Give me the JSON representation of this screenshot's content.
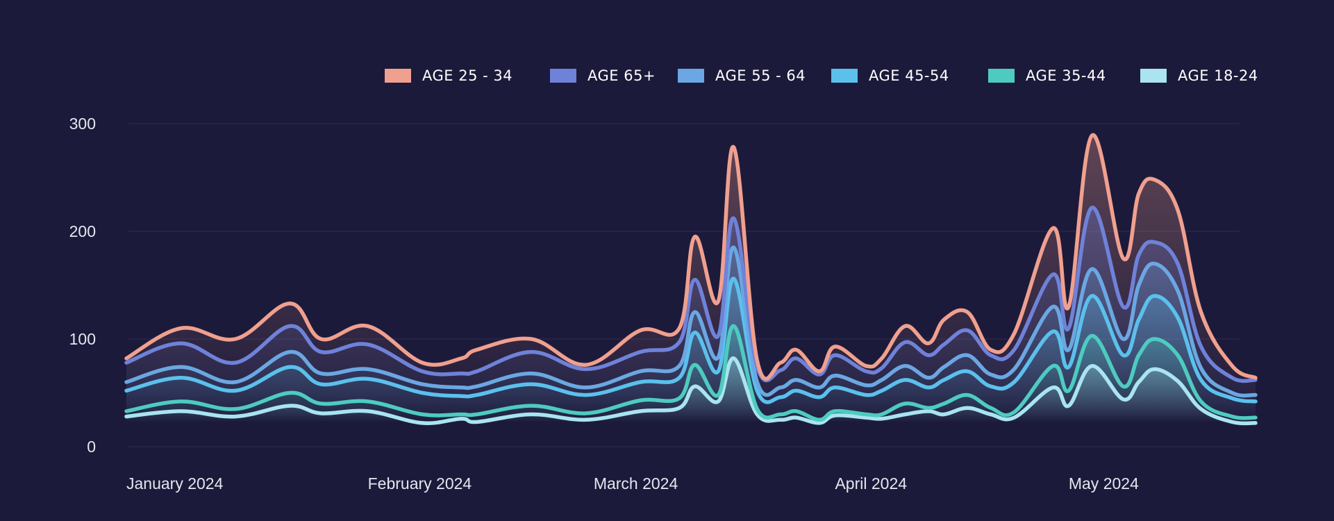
{
  "chart_data": {
    "type": "area",
    "title": "",
    "xlabel": "",
    "ylabel": "",
    "ylim": [
      0,
      300
    ],
    "yticks": [
      0,
      100,
      200,
      300
    ],
    "x_ticks": [
      {
        "label": "January 2024",
        "date": "2024-01-01"
      },
      {
        "label": "February 2024",
        "date": "2024-02-01"
      },
      {
        "label": "March 2024",
        "date": "2024-03-01"
      },
      {
        "label": "April 2024",
        "date": "2024-04-01"
      },
      {
        "label": "May 2024",
        "date": "2024-05-01"
      }
    ],
    "grid": true,
    "legend_position": "top-right",
    "x": [
      "2024-01-01",
      "2024-01-08",
      "2024-01-15",
      "2024-01-22",
      "2024-01-26",
      "2024-02-01",
      "2024-02-08",
      "2024-02-13",
      "2024-02-15",
      "2024-02-22",
      "2024-02-29",
      "2024-03-07",
      "2024-03-12",
      "2024-03-14",
      "2024-03-17",
      "2024-03-19",
      "2024-03-22",
      "2024-03-25",
      "2024-03-27",
      "2024-03-30",
      "2024-04-01",
      "2024-04-05",
      "2024-04-07",
      "2024-04-10",
      "2024-04-13",
      "2024-04-15",
      "2024-04-18",
      "2024-04-21",
      "2024-04-24",
      "2024-04-29",
      "2024-05-01",
      "2024-05-04",
      "2024-05-08",
      "2024-05-10",
      "2024-05-12",
      "2024-05-15",
      "2024-05-18",
      "2024-05-22",
      "2024-05-25"
    ],
    "series": [
      {
        "name": "AGE 18-24",
        "color": "#a9e4f0",
        "values": [
          28,
          33,
          28,
          38,
          31,
          33,
          22,
          26,
          23,
          30,
          25,
          33,
          36,
          56,
          42,
          82,
          30,
          25,
          27,
          22,
          29,
          27,
          26,
          30,
          33,
          30,
          36,
          30,
          27,
          55,
          38,
          75,
          44,
          60,
          72,
          61,
          35,
          23,
          22
        ]
      },
      {
        "name": "AGE 35-44",
        "color": "#4ecbc1",
        "values": [
          33,
          42,
          35,
          50,
          40,
          42,
          30,
          30,
          30,
          38,
          31,
          43,
          45,
          76,
          48,
          112,
          35,
          30,
          33,
          25,
          33,
          30,
          30,
          40,
          36,
          40,
          48,
          36,
          32,
          75,
          52,
          103,
          56,
          85,
          100,
          85,
          42,
          28,
          27
        ]
      },
      {
        "name": "AGE 45-54",
        "color": "#5bc0ec",
        "values": [
          52,
          64,
          52,
          74,
          58,
          63,
          50,
          47,
          48,
          58,
          48,
          60,
          64,
          106,
          70,
          156,
          52,
          46,
          52,
          46,
          55,
          48,
          52,
          62,
          55,
          62,
          70,
          56,
          60,
          107,
          74,
          140,
          85,
          118,
          140,
          120,
          62,
          45,
          42
        ]
      },
      {
        "name": "AGE 55 - 64",
        "color": "#6ba7e2",
        "values": [
          60,
          74,
          60,
          88,
          68,
          72,
          58,
          55,
          56,
          68,
          55,
          70,
          75,
          125,
          83,
          185,
          60,
          55,
          62,
          55,
          66,
          57,
          62,
          75,
          64,
          74,
          85,
          67,
          72,
          130,
          90,
          165,
          100,
          150,
          170,
          145,
          73,
          50,
          48
        ]
      },
      {
        "name": "AGE 65+",
        "color": "#6f82d9",
        "values": [
          78,
          96,
          78,
          112,
          88,
          95,
          70,
          68,
          70,
          88,
          72,
          88,
          97,
          155,
          103,
          212,
          74,
          71,
          82,
          67,
          85,
          70,
          73,
          97,
          85,
          95,
          108,
          85,
          90,
          160,
          110,
          222,
          130,
          178,
          190,
          170,
          93,
          64,
          62
        ]
      },
      {
        "name": "AGE 25 - 34",
        "color": "#f0a08e",
        "values": [
          82,
          110,
          100,
          133,
          100,
          112,
          78,
          82,
          90,
          100,
          76,
          108,
          110,
          195,
          135,
          278,
          80,
          78,
          90,
          70,
          93,
          75,
          82,
          112,
          96,
          118,
          125,
          90,
          105,
          203,
          130,
          289,
          175,
          235,
          248,
          220,
          125,
          75,
          64
        ]
      }
    ],
    "legend_order": [
      "AGE 25 - 34",
      "AGE 65+",
      "AGE 55 - 64",
      "AGE 45-54",
      "AGE 35-44",
      "AGE 18-24"
    ]
  }
}
